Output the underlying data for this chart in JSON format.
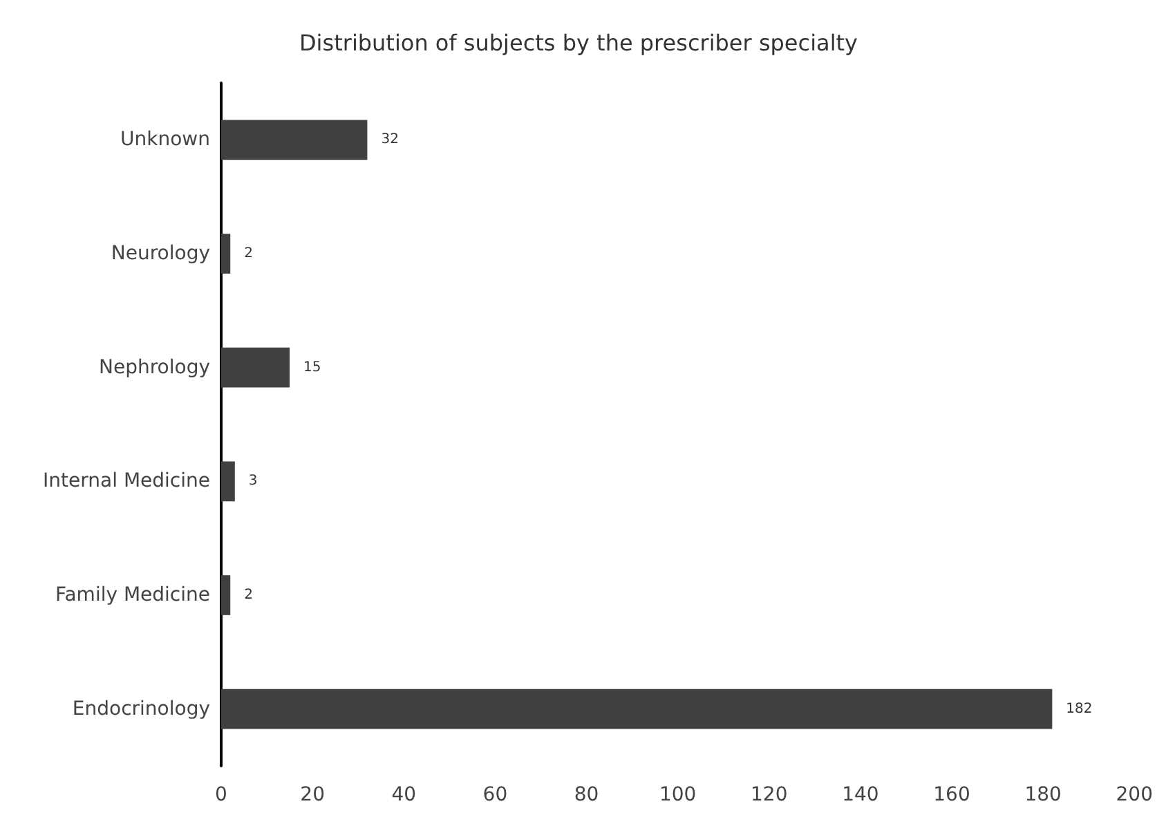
{
  "chart_data": {
    "type": "bar",
    "orientation": "horizontal",
    "title": "Distribution of subjects by the prescriber specialty",
    "categories": [
      "Unknown",
      "Neurology",
      "Nephrology",
      "Internal Medicine",
      "Family Medicine",
      "Endocrinology"
    ],
    "values": [
      32,
      2,
      15,
      3,
      2,
      182
    ],
    "color": "#404040",
    "xlim": [
      0,
      200
    ],
    "xticks": [
      0,
      20,
      40,
      60,
      80,
      100,
      120,
      140,
      160,
      180,
      200
    ],
    "grid": false,
    "data_labels": true
  }
}
